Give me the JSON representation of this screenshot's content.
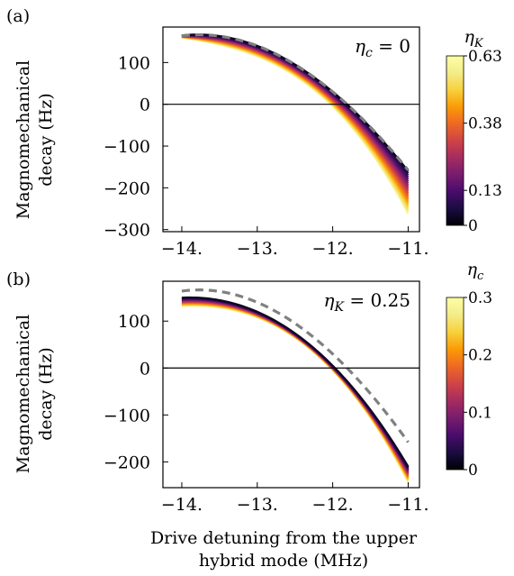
{
  "figure": {
    "panel_a_label": "(a)",
    "panel_b_label": "(b)",
    "ylabel_line1": "Magnomechanical",
    "ylabel_line2": "decay (Hz)",
    "xlabel_line1": "Drive detuning from the upper",
    "xlabel_line2": "hybrid mode (MHz)"
  },
  "colors": {
    "reference_dashed": "#808080",
    "zero_line": "#000000",
    "colormap": "inferno"
  },
  "chart_data": [
    {
      "type": "line",
      "panel": "a",
      "annotation": {
        "symbol": "η",
        "sub": "c",
        "rest": " = 0"
      },
      "x_ticks": [
        "−14.",
        "−13.",
        "−12.",
        "−11."
      ],
      "x_tick_values": [
        -14,
        -13,
        -12,
        -11
      ],
      "y_ticks": [
        "100",
        "0",
        "−100",
        "−200",
        "−300"
      ],
      "y_tick_values": [
        100,
        0,
        -100,
        -200,
        -300
      ],
      "xlim": [
        -14.25,
        -10.85
      ],
      "ylim": [
        -305,
        185
      ],
      "zero_line": true,
      "colorbar": {
        "label_symbol": "η",
        "label_sub": "K",
        "ticks": [
          "0.63",
          "0.38",
          "0.13",
          "0"
        ],
        "tick_values": [
          0.63,
          0.38,
          0.13,
          0
        ],
        "range": [
          0,
          0.63
        ],
        "colormap": "inferno"
      },
      "reference_curve": {
        "x": [
          -14.0,
          -13.7,
          -13.0,
          -12.0,
          -11.7,
          -11.0
        ],
        "y": [
          164,
          168,
          140,
          30,
          0,
          -158
        ],
        "style": "dashed"
      },
      "family": {
        "param_range": [
          0,
          0.63
        ],
        "count": 22,
        "x": [
          -14.0,
          -13.0,
          -12.0,
          -11.0
        ],
        "y_at_min": [
          165,
          140,
          30,
          -160
        ],
        "y_at_max": [
          160,
          115,
          -5,
          -262
        ]
      }
    },
    {
      "type": "line",
      "panel": "b",
      "annotation": {
        "symbol": "η",
        "sub": "K",
        "rest": " = 0.25"
      },
      "x_ticks": [
        "−14.",
        "−13.",
        "−12.",
        "−11."
      ],
      "x_tick_values": [
        -14,
        -13,
        -12,
        -11
      ],
      "y_ticks": [
        "100",
        "0",
        "−100",
        "−200"
      ],
      "y_tick_values": [
        100,
        0,
        -100,
        -200
      ],
      "xlim": [
        -14.25,
        -10.85
      ],
      "ylim": [
        -255,
        185
      ],
      "zero_line": true,
      "colorbar": {
        "label_symbol": "η",
        "label_sub": "c",
        "ticks": [
          "0.3",
          "0.2",
          "0.1",
          "0"
        ],
        "tick_values": [
          0.3,
          0.2,
          0.1,
          0
        ],
        "range": [
          0,
          0.3
        ],
        "colormap": "inferno"
      },
      "reference_curve": {
        "x": [
          -14.0,
          -13.7,
          -13.0,
          -12.0,
          -11.7,
          -11.0
        ],
        "y": [
          164,
          168,
          140,
          30,
          0,
          -158
        ],
        "style": "dashed"
      },
      "family": {
        "param_range": [
          0,
          0.3
        ],
        "count": 22,
        "x": [
          -14.0,
          -13.0,
          -12.0,
          -11.0
        ],
        "y_at_min": [
          150,
          120,
          5,
          -210
        ],
        "y_at_max": [
          132,
          108,
          -5,
          -243
        ]
      }
    }
  ]
}
